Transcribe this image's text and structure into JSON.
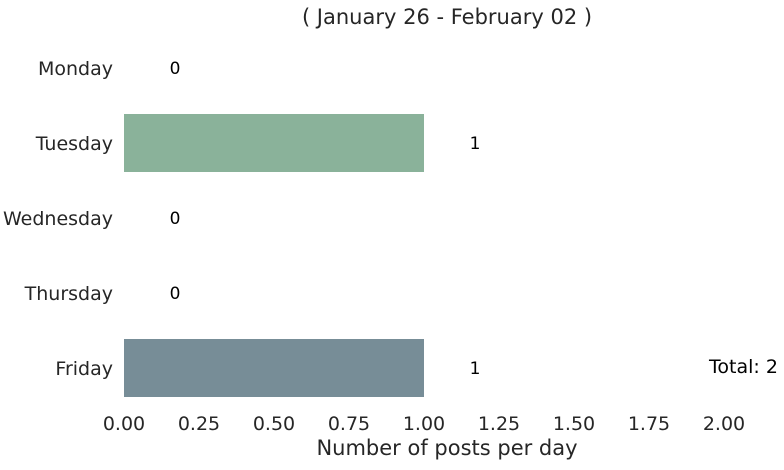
{
  "chart_data": {
    "type": "bar",
    "orientation": "horizontal",
    "title": "( January 26 - February 02 )",
    "xlabel": "Number of posts per day",
    "ylabel": "",
    "categories": [
      "Monday",
      "Tuesday",
      "Wednesday",
      "Thursday",
      "Friday"
    ],
    "values": [
      0,
      1,
      0,
      0,
      1
    ],
    "data_labels": [
      "0",
      "1",
      "0",
      "0",
      "1"
    ],
    "bar_colors": [
      "#8ab29a",
      "#8ab29a",
      "#8ab29a",
      "#8ab29a",
      "#778d97"
    ],
    "xlim": [
      0,
      2.0
    ],
    "x_ticks": [
      "0.00",
      "0.25",
      "0.50",
      "0.75",
      "1.00",
      "1.25",
      "1.50",
      "1.75",
      "2.00"
    ],
    "grid": false,
    "legend": "none",
    "total_label": "Total: 2"
  }
}
